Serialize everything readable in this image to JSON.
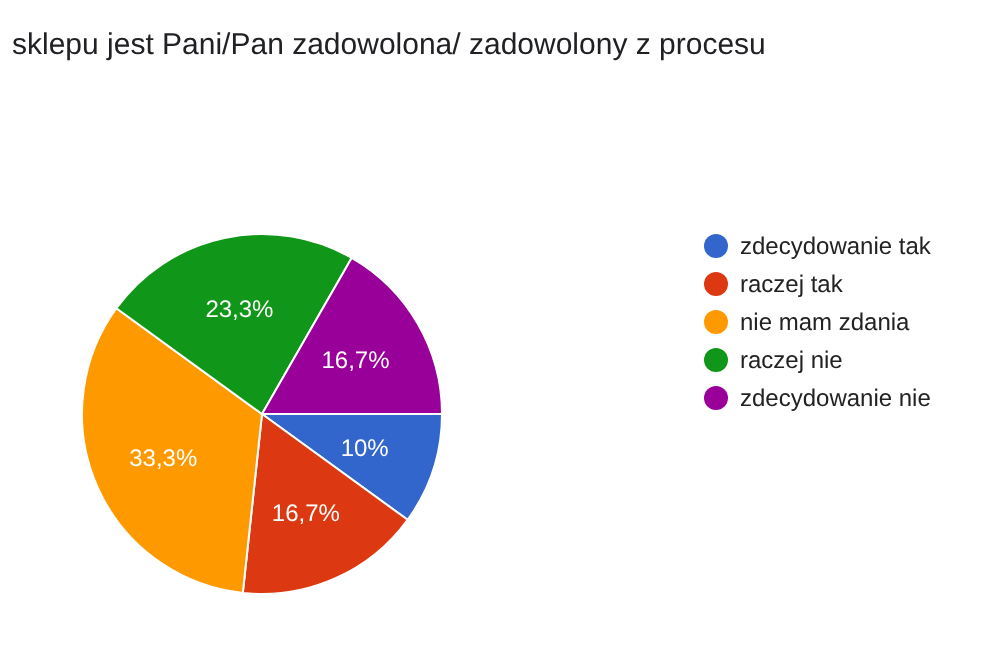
{
  "chart_data": {
    "type": "pie",
    "title": "sklepu jest Pani/Pan zadowolona/ zadowolony z procesu",
    "categories": [
      "zdecydowanie tak",
      "raczej tak",
      "nie mam zdania",
      "raczej nie",
      "zdecydowanie nie"
    ],
    "values": [
      10,
      16.7,
      33.3,
      23.3,
      16.7
    ],
    "colors": [
      "#3366cc",
      "#dc3912",
      "#ff9900",
      "#109618",
      "#990099"
    ],
    "value_labels": [
      "10%",
      "16,7%",
      "33,3%",
      "23,3%",
      "16,7%"
    ],
    "legend": "right"
  }
}
